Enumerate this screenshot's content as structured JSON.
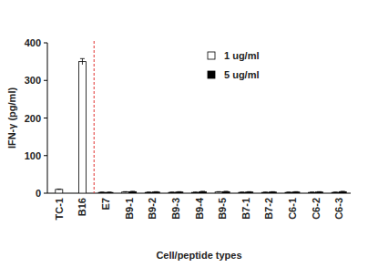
{
  "chart_data": {
    "type": "bar",
    "x_label": "Cell/peptide types",
    "y_label": "IFN-γ (pg/ml)",
    "categories": [
      "TC-1",
      "B16",
      "E7",
      "B9-1",
      "B9-2",
      "B9-3",
      "B9-4",
      "B9-5",
      "B7-1",
      "B7-2",
      "C6-1",
      "C6-2",
      "C6-3"
    ],
    "series": [
      {
        "name": "1 ug/ml",
        "color": "#ffffff",
        "values": [
          10,
          350,
          2,
          3,
          2,
          2,
          2,
          3,
          2,
          2,
          2,
          2,
          2
        ],
        "errors": [
          1,
          8,
          1,
          1,
          1,
          1,
          1,
          1,
          1,
          1,
          1,
          1,
          1
        ]
      },
      {
        "name": "5 ug/ml",
        "color": "#000000",
        "values": [
          null,
          null,
          2,
          4,
          3,
          3,
          4,
          4,
          3,
          3,
          3,
          3,
          4
        ],
        "errors": [
          null,
          null,
          1,
          1,
          1,
          1,
          1,
          1,
          1,
          1,
          1,
          1,
          1
        ]
      }
    ],
    "ylim": [
      0,
      400
    ],
    "yticks": [
      0,
      100,
      200,
      300,
      400
    ],
    "grid": false,
    "legend": "top right"
  }
}
